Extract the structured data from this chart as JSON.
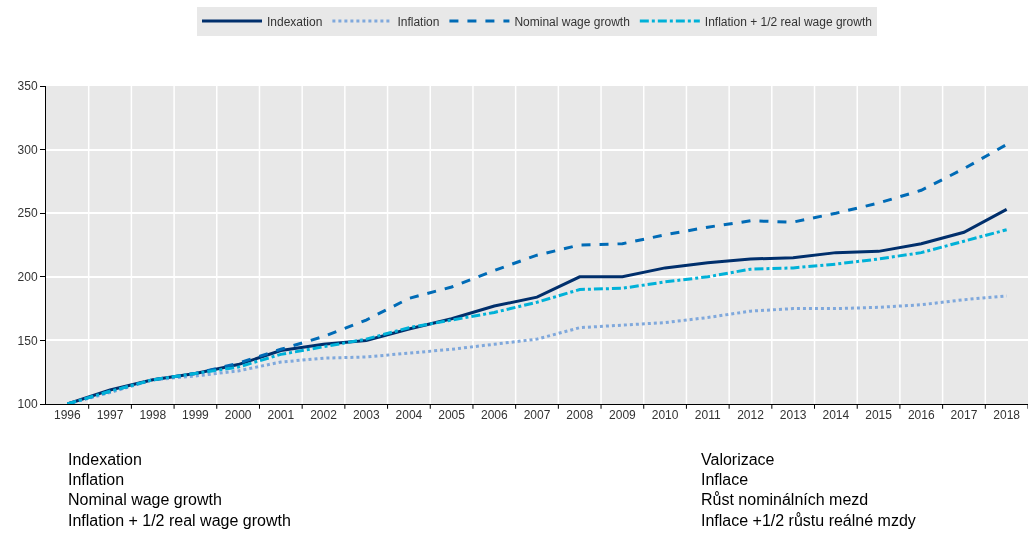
{
  "chart_data": {
    "type": "line",
    "categories": [
      "1996",
      "1997",
      "1998",
      "1999",
      "2000",
      "2001",
      "2002",
      "2003",
      "2004",
      "2005",
      "2006",
      "2007",
      "2008",
      "2009",
      "2010",
      "2011",
      "2012",
      "2013",
      "2014",
      "2015",
      "2016",
      "2017",
      "2018"
    ],
    "series": [
      {
        "name": "Indexation",
        "color": "#002f6c",
        "line_style": "solid",
        "values": [
          100,
          111,
          119,
          124,
          131,
          142,
          147,
          150,
          159,
          167,
          177,
          184,
          200,
          200,
          207,
          211,
          214,
          215,
          219,
          220,
          226,
          235,
          253
        ]
      },
      {
        "name": "Inflation",
        "color": "#7fa8dc",
        "line_style": "dotted",
        "values": [
          100,
          109,
          119,
          122,
          126,
          133,
          136,
          137,
          140,
          143,
          147,
          151,
          160,
          162,
          164,
          168,
          173,
          175,
          175,
          176,
          178,
          182,
          185
        ]
      },
      {
        "name": "Nominal wage growth",
        "color": "#006bb6",
        "line_style": "dashed",
        "values": [
          100,
          110,
          119,
          124,
          132,
          143,
          153,
          166,
          183,
          192,
          205,
          217,
          225,
          226,
          233,
          239,
          244,
          243,
          250,
          258,
          268,
          285,
          304
        ]
      },
      {
        "name": "Inflation + 1/2 real wage growth",
        "color": "#00b1d8",
        "line_style": "dashdot",
        "values": [
          100,
          110,
          119,
          124,
          129,
          139,
          145,
          151,
          160,
          166,
          172,
          180,
          190,
          191,
          196,
          200,
          206,
          207,
          210,
          214,
          219,
          228,
          237
        ]
      }
    ],
    "ylim": [
      100,
      350
    ],
    "yticks": [
      100,
      150,
      200,
      250,
      300,
      350
    ],
    "grid": true,
    "legend": "top",
    "marker": "none",
    "annotations": [
      "Indexation",
      "Inflation",
      "Nominal wage growth",
      "Inflation + 1/2 real wage growth",
      "Valorizace",
      "Inflace",
      "Růst nominálních mezd",
      "Inflace +1/2 růstu reálné mzdy"
    ]
  }
}
